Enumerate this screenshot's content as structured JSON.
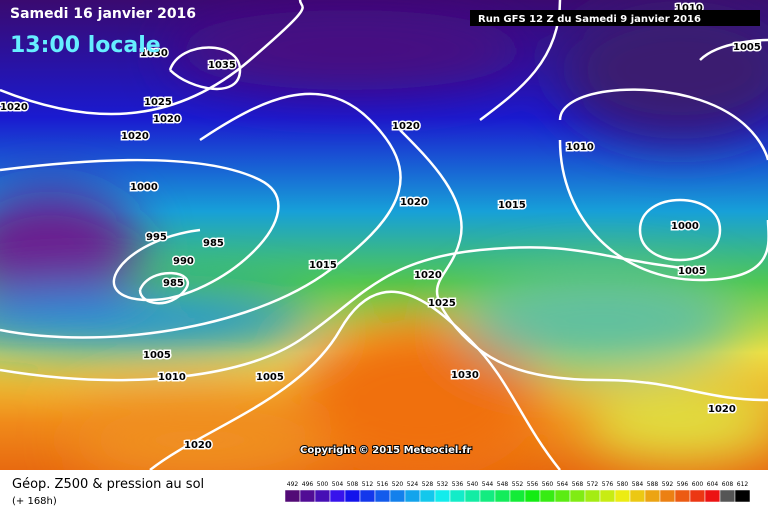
{
  "header": {
    "date": "Samedi 16 janvier 2016",
    "time": "13:00 locale",
    "run": "Run GFS 12 Z du Samedi 9 janvier 2016"
  },
  "isobar_labels": [
    "1035",
    "1030",
    "1025",
    "1020",
    "1020",
    "1020",
    "1000",
    "995",
    "985",
    "990",
    "985",
    "1015",
    "1005",
    "1010",
    "1005",
    "1020",
    "1020",
    "1010",
    "1020",
    "1015",
    "1000",
    "1005",
    "1020",
    "1025",
    "1030",
    "1020",
    "1005",
    "1010"
  ],
  "copyright": "Copyright © 2015 Meteociel.fr",
  "footer": {
    "title": "Géop. Z500 & pression au sol",
    "lead": "(+ 168h)"
  },
  "scale": [
    492,
    496,
    500,
    504,
    508,
    512,
    516,
    520,
    524,
    528,
    532,
    536,
    540,
    544,
    548,
    552,
    556,
    560,
    564,
    568,
    572,
    576,
    580,
    584,
    588,
    592,
    596,
    600,
    604,
    608,
    612
  ]
}
